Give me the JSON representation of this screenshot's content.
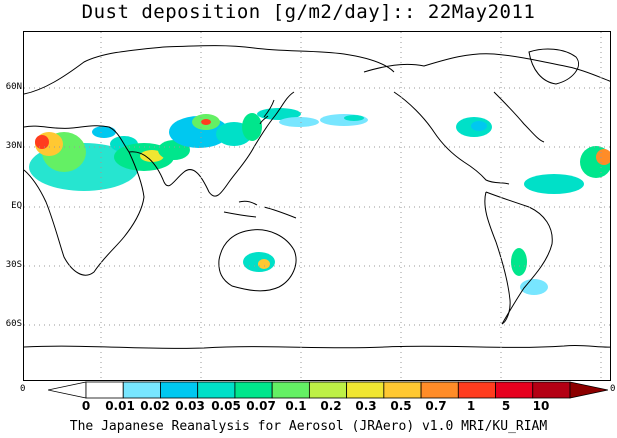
{
  "title": "Dust deposition [g/m2/day]:: 22May2011",
  "latitude_labels": [
    "60N",
    "30N",
    "EQ",
    "30S",
    "60S"
  ],
  "colorbar": {
    "left_end_label": "0",
    "right_end_label": "0",
    "tick_labels": [
      "0",
      "0.01",
      "0.02",
      "0.03",
      "0.05",
      "0.07",
      "0.1",
      "0.2",
      "0.3",
      "0.5",
      "0.7",
      "1",
      "5",
      "10"
    ],
    "colors": [
      "#ffffff",
      "#ffffff",
      "#78e6ff",
      "#00c8f0",
      "#00e0c8",
      "#00e68c",
      "#64f064",
      "#bef046",
      "#f0e632",
      "#ffc832",
      "#ff8c28",
      "#ff3c1e",
      "#e6001e",
      "#b40014",
      "#8c0000"
    ]
  },
  "footer": "The Japanese Reanalysis for Aerosol (JRAero) v1.0 MRI/KU_RIAM"
}
